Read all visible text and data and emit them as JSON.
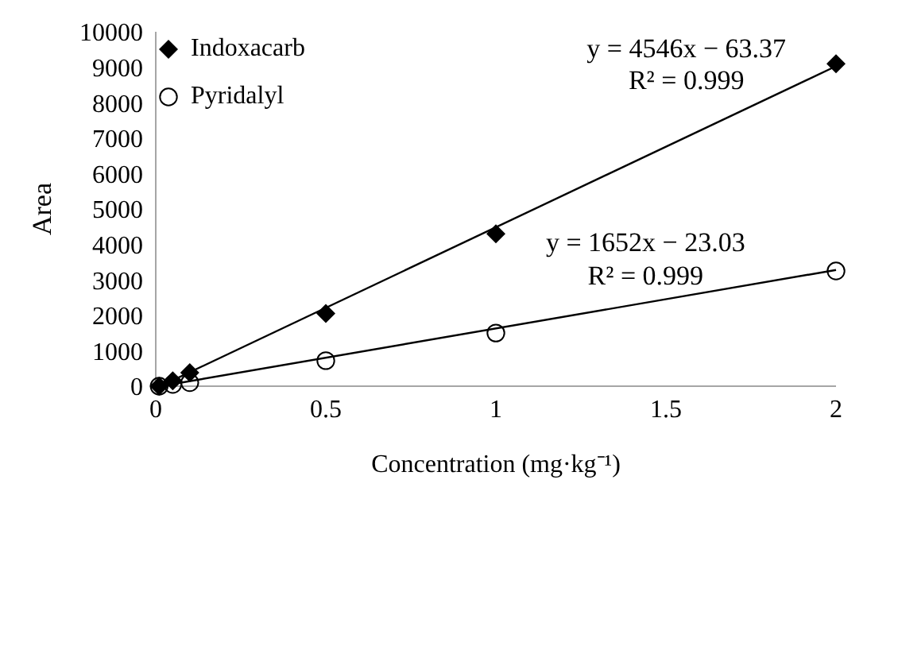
{
  "chart_data": {
    "type": "scatter",
    "xlabel": "Concentration (mg·kg⁻¹)",
    "ylabel": "Area",
    "xlim": [
      0,
      2
    ],
    "xticks": [
      0,
      0.5,
      1,
      1.5,
      2
    ],
    "ylim": [
      0,
      10000
    ],
    "yticks": [
      0,
      1000,
      2000,
      3000,
      4000,
      5000,
      6000,
      7000,
      8000,
      9000,
      10000
    ],
    "grid": false,
    "legend": "top left",
    "series": [
      {
        "type": "line",
        "color": "#000000",
        "marker": "none",
        "x": [
          0.02,
          2
        ],
        "values": [
          30,
          9030
        ]
      },
      {
        "type": "line",
        "color": "#000000",
        "marker": "none",
        "x": [
          0.02,
          2
        ],
        "values": [
          10,
          3280
        ]
      },
      {
        "name": "Indoxacarb",
        "color": "#000000",
        "marker": "diamond",
        "x": [
          0.01,
          0.05,
          0.1,
          0.5,
          1,
          2
        ],
        "values": [
          0,
          150,
          380,
          2050,
          4300,
          9100
        ]
      },
      {
        "name": "Pyridalyl",
        "color": "#000000",
        "marker": "circle",
        "x": [
          0.01,
          0.05,
          0.1,
          0.5,
          1,
          2
        ],
        "values": [
          0,
          50,
          100,
          720,
          1500,
          3250
        ]
      }
    ],
    "annotations": [
      "y = 4546x − 63.37",
      "R² = 0.999",
      "y = 1652x − 23.03",
      "R² = 0.999"
    ]
  }
}
